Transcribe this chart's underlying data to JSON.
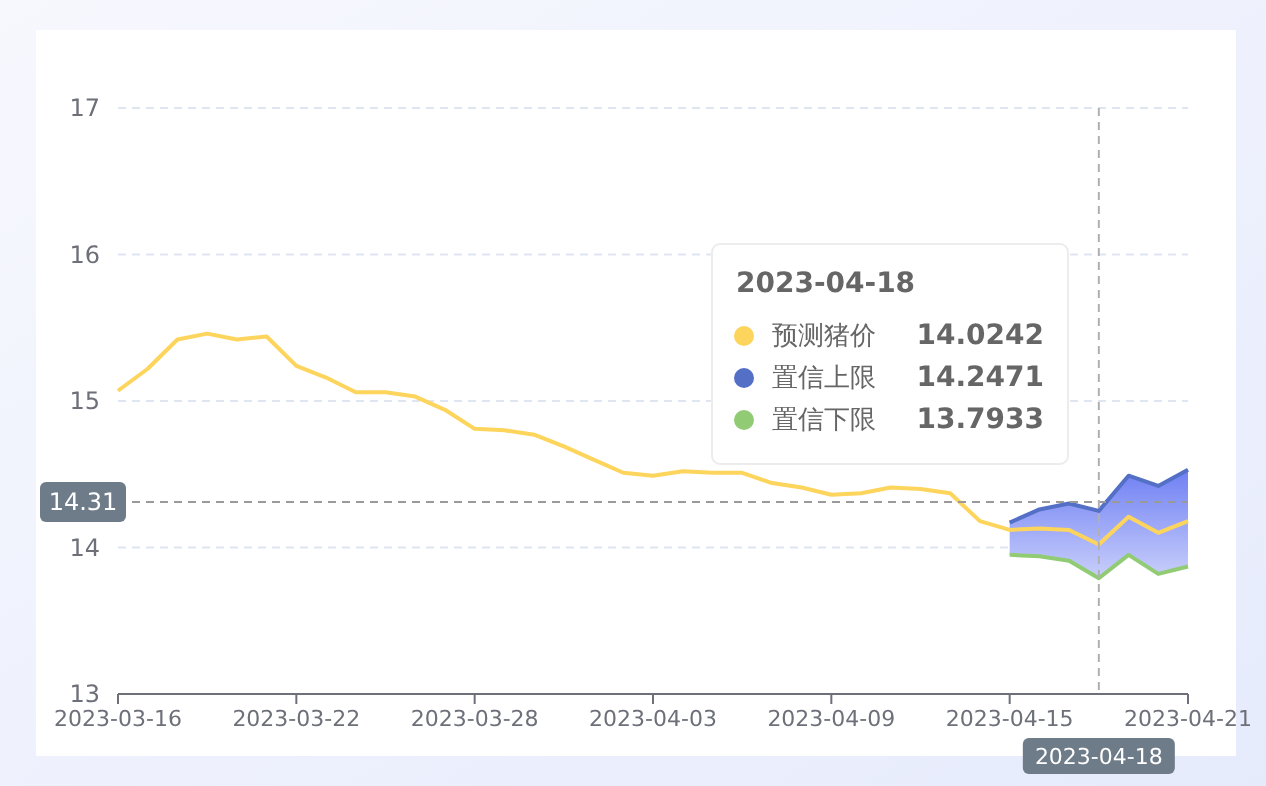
{
  "chart_data": {
    "type": "line",
    "x": [
      "2023-03-16",
      "2023-03-17",
      "2023-03-18",
      "2023-03-19",
      "2023-03-20",
      "2023-03-21",
      "2023-03-22",
      "2023-03-23",
      "2023-03-24",
      "2023-03-25",
      "2023-03-26",
      "2023-03-27",
      "2023-03-28",
      "2023-03-29",
      "2023-03-30",
      "2023-03-31",
      "2023-04-01",
      "2023-04-02",
      "2023-04-03",
      "2023-04-04",
      "2023-04-05",
      "2023-04-06",
      "2023-04-07",
      "2023-04-08",
      "2023-04-09",
      "2023-04-10",
      "2023-04-11",
      "2023-04-12",
      "2023-04-13",
      "2023-04-14",
      "2023-04-15",
      "2023-04-16",
      "2023-04-17",
      "2023-04-18",
      "2023-04-19",
      "2023-04-20",
      "2023-04-21"
    ],
    "series": [
      {
        "name": "预测猪价",
        "color": "#fdd45c",
        "values": [
          15.07,
          15.22,
          15.42,
          15.46,
          15.42,
          15.44,
          15.24,
          15.16,
          15.06,
          15.06,
          15.03,
          14.94,
          14.81,
          14.8,
          14.77,
          14.69,
          14.6,
          14.51,
          14.49,
          14.52,
          14.51,
          14.51,
          14.44,
          14.41,
          14.36,
          14.37,
          14.41,
          14.4,
          14.37,
          14.18,
          14.12,
          14.13,
          14.12,
          14.02,
          14.21,
          14.1,
          14.18
        ]
      },
      {
        "name": "置信上限",
        "type": "area",
        "color": "#5470c6",
        "x": [
          "2023-04-15",
          "2023-04-16",
          "2023-04-17",
          "2023-04-18",
          "2023-04-19",
          "2023-04-20",
          "2023-04-21"
        ],
        "values": [
          14.17,
          14.26,
          14.3,
          14.25,
          14.49,
          14.42,
          14.53
        ]
      },
      {
        "name": "置信下限",
        "color": "#91cc75",
        "x": [
          "2023-04-15",
          "2023-04-16",
          "2023-04-17",
          "2023-04-18",
          "2023-04-19",
          "2023-04-20",
          "2023-04-21"
        ],
        "values": [
          13.95,
          13.94,
          13.91,
          13.79,
          13.95,
          13.82,
          13.87
        ]
      }
    ],
    "xlim": [
      "2023-03-16",
      "2023-04-21"
    ],
    "xticks": [
      "2023-03-16",
      "2023-03-22",
      "2023-03-28",
      "2023-04-03",
      "2023-04-09",
      "2023-04-15",
      "2023-04-21"
    ],
    "ylim": [
      13,
      17
    ],
    "yticks": [
      13,
      14,
      15,
      16,
      17
    ],
    "grid": "y",
    "legend": "top",
    "marker": "none",
    "line_style": "solid",
    "ref_lines": [
      {
        "axis": "y",
        "value": 14.31,
        "label": "14.31",
        "line_style": "dashed"
      },
      {
        "axis": "x",
        "value": "2023-04-18",
        "label": "2023-04-18",
        "line_style": "dashed"
      }
    ],
    "annotations": [
      "2023-04-18",
      "14.0242",
      "14.2471",
      "13.7933"
    ]
  }
}
